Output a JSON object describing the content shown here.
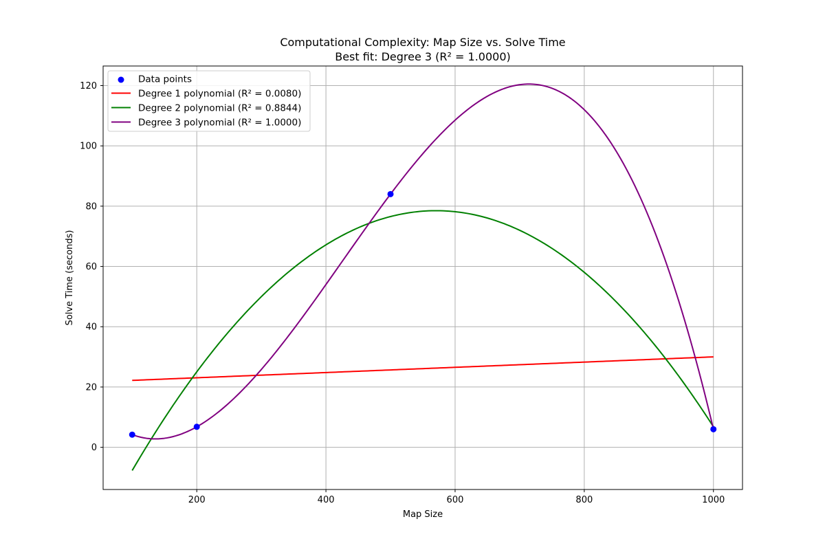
{
  "chart_data": {
    "type": "line",
    "title": "Computational Complexity: Map Size vs. Solve Time",
    "subtitle": "Best fit: Degree 3 (R² = 1.0000)",
    "xlabel": "Map Size",
    "ylabel": "Solve Time (seconds)",
    "xlim": [
      55,
      1045
    ],
    "ylim": [
      -14,
      126.5
    ],
    "xticks": [
      200,
      400,
      600,
      800,
      1000
    ],
    "yticks": [
      0,
      20,
      40,
      60,
      80,
      100,
      120
    ],
    "grid": true,
    "legend_position": "top-left",
    "points": {
      "name": "Data points",
      "color": "#0000ff",
      "x": [
        100,
        200,
        500,
        1000
      ],
      "y": [
        4.2,
        6.8,
        84.0,
        6.0
      ]
    },
    "series": [
      {
        "name": "Degree 1 polynomial (R² = 0.0080)",
        "color": "#ff0000",
        "degree": 1,
        "x": [
          100,
          1000
        ],
        "y": [
          22.2,
          30.0
        ]
      },
      {
        "name": "Degree 2 polynomial (R² = 0.8844)",
        "color": "#008000",
        "degree": 2,
        "x": [
          100,
          570,
          1000
        ],
        "y": [
          -7.7,
          78.5,
          6.8
        ]
      },
      {
        "name": "Degree 3 polynomial (R² = 1.0000)",
        "color": "#800080",
        "degree": 3,
        "x": [
          100,
          200,
          500,
          1000
        ],
        "y": [
          4.2,
          6.8,
          84.0,
          6.0
        ]
      }
    ]
  }
}
